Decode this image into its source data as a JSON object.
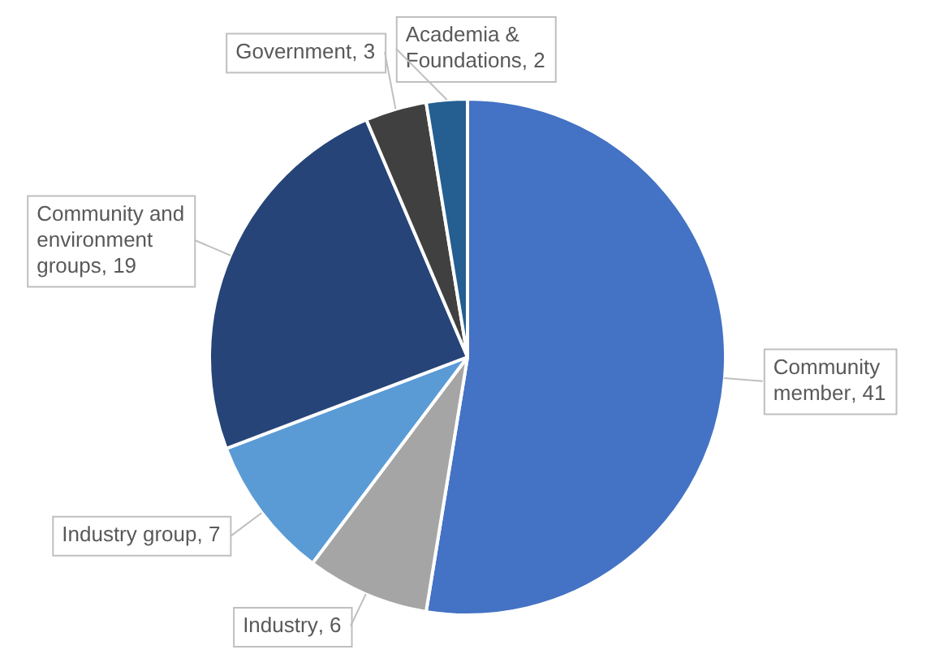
{
  "chart_data": {
    "type": "pie",
    "categories": [
      "Community member",
      "Industry",
      "Industry group",
      "Community and environment groups",
      "Government",
      "Academia & Foundations"
    ],
    "values": [
      41,
      6,
      7,
      19,
      3,
      2
    ],
    "value_labels": [
      ", 41",
      ", 6",
      ", 7",
      ", 19",
      ", 3",
      ", 2"
    ],
    "colors": [
      "#4472c4",
      "#a5a5a5",
      "#5b9bd5",
      "#264478",
      "#404040",
      "#255e91"
    ],
    "legend": false
  }
}
